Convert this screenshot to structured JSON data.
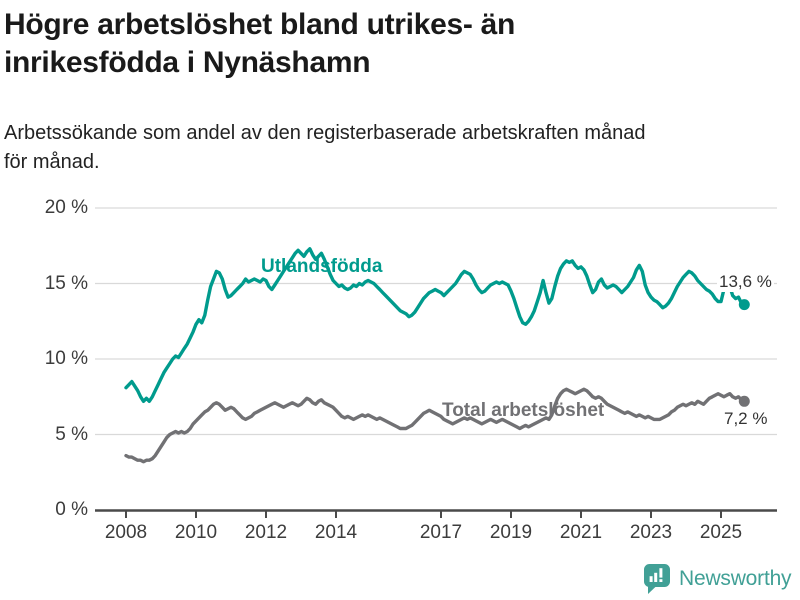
{
  "header": {
    "title": "Högre arbetslöshet bland utrikes- än inrikesfödda i Nynäshamn",
    "title_lines": [
      "Högre arbetslöshet bland utrikes- än",
      "inrikesfödda i Nynäshamn"
    ],
    "subtitle": "Arbetssökande som andel av den registerbaserade arbetskraften månad för månad.",
    "subtitle_lines": [
      "Arbetssökande som andel av den registerbaserade arbetskraften månad",
      "för månad."
    ]
  },
  "footer": {
    "brand": "Newsworthy",
    "logo_icon": "speech-bubble-bar-chart-icon",
    "brand_color": "#41a096"
  },
  "colors": {
    "accent_teal": "#009b8d",
    "neutral_gray": "#717174",
    "gridline": "#d9d9d9",
    "axis": "#4a4a4a",
    "tick_text": "#3c3c3c",
    "annotation_text": "#333333"
  },
  "chart_data": {
    "type": "line",
    "unit": "%",
    "x_start_year": 2008.0,
    "x_step_months": 1,
    "x_end_label_period": "2025",
    "ylim": [
      0,
      20
    ],
    "grid": true,
    "yticks": [
      {
        "value": 0,
        "label": "0 %"
      },
      {
        "value": 5,
        "label": "5 %"
      },
      {
        "value": 10,
        "label": "10 %"
      },
      {
        "value": 15,
        "label": "15 %"
      },
      {
        "value": 20,
        "label": "20 %"
      }
    ],
    "xticks": [
      {
        "year": 2008,
        "label": "2008"
      },
      {
        "year": 2010,
        "label": "2010"
      },
      {
        "year": 2012,
        "label": "2012"
      },
      {
        "year": 2014,
        "label": "2014"
      },
      {
        "year": 2017,
        "label": "2017"
      },
      {
        "year": 2019,
        "label": "2019"
      },
      {
        "year": 2021,
        "label": "2021"
      },
      {
        "year": 2023,
        "label": "2023"
      },
      {
        "year": 2025,
        "label": "2025"
      }
    ],
    "series": [
      {
        "name": "Utlandsfödda",
        "color": "#009b8d",
        "end_value": 13.6,
        "end_label": "13,6 %",
        "values": [
          8.1,
          8.3,
          8.5,
          8.2,
          7.9,
          7.5,
          7.2,
          7.4,
          7.2,
          7.5,
          7.9,
          8.3,
          8.7,
          9.1,
          9.4,
          9.7,
          10.0,
          10.2,
          10.1,
          10.4,
          10.7,
          11.0,
          11.4,
          11.8,
          12.3,
          12.6,
          12.4,
          12.9,
          13.9,
          14.8,
          15.3,
          15.8,
          15.7,
          15.3,
          14.6,
          14.1,
          14.2,
          14.4,
          14.6,
          14.8,
          15.0,
          15.3,
          15.1,
          15.2,
          15.3,
          15.2,
          15.1,
          15.3,
          15.2,
          14.8,
          14.6,
          14.9,
          15.2,
          15.5,
          15.8,
          16.1,
          16.4,
          16.7,
          17.0,
          17.2,
          17.0,
          16.8,
          17.1,
          17.3,
          16.9,
          16.6,
          16.8,
          17.0,
          16.6,
          16.1,
          15.6,
          15.2,
          15.0,
          14.8,
          14.9,
          14.7,
          14.6,
          14.7,
          14.9,
          14.8,
          15.0,
          14.9,
          15.1,
          15.2,
          15.1,
          15.0,
          14.8,
          14.6,
          14.4,
          14.2,
          14.0,
          13.8,
          13.6,
          13.4,
          13.2,
          13.1,
          13.0,
          12.8,
          12.9,
          13.1,
          13.4,
          13.7,
          14.0,
          14.2,
          14.4,
          14.5,
          14.6,
          14.5,
          14.4,
          14.2,
          14.4,
          14.6,
          14.8,
          15.0,
          15.3,
          15.6,
          15.8,
          15.7,
          15.6,
          15.3,
          14.9,
          14.6,
          14.4,
          14.5,
          14.7,
          14.9,
          15.0,
          15.1,
          15.0,
          15.1,
          15.0,
          14.9,
          14.5,
          14.0,
          13.4,
          12.8,
          12.4,
          12.3,
          12.5,
          12.8,
          13.2,
          13.8,
          14.4,
          15.2,
          14.4,
          13.7,
          14.0,
          14.8,
          15.5,
          16.0,
          16.3,
          16.5,
          16.4,
          16.5,
          16.2,
          16.0,
          16.1,
          15.9,
          15.5,
          14.9,
          14.4,
          14.6,
          15.1,
          15.3,
          14.9,
          14.7,
          14.8,
          14.9,
          14.8,
          14.6,
          14.4,
          14.6,
          14.8,
          15.1,
          15.4,
          15.9,
          16.2,
          15.8,
          14.9,
          14.4,
          14.1,
          13.9,
          13.8,
          13.6,
          13.4,
          13.5,
          13.7,
          14.0,
          14.4,
          14.8,
          15.1,
          15.4,
          15.6,
          15.8,
          15.7,
          15.5,
          15.2,
          15.0,
          14.8,
          14.6,
          14.5,
          14.3,
          14.0,
          13.8,
          13.8,
          14.6,
          15.3,
          14.8,
          14.2,
          14.0,
          14.1,
          13.7,
          13.6
        ]
      },
      {
        "name": "Total arbetslöshet",
        "color": "#717174",
        "end_value": 7.2,
        "end_label": "7,2 %",
        "values": [
          3.6,
          3.5,
          3.5,
          3.4,
          3.3,
          3.3,
          3.2,
          3.3,
          3.3,
          3.4,
          3.6,
          3.9,
          4.2,
          4.5,
          4.8,
          5.0,
          5.1,
          5.2,
          5.1,
          5.2,
          5.1,
          5.2,
          5.4,
          5.7,
          5.9,
          6.1,
          6.3,
          6.5,
          6.6,
          6.8,
          7.0,
          7.1,
          7.0,
          6.8,
          6.6,
          6.7,
          6.8,
          6.7,
          6.5,
          6.3,
          6.1,
          6.0,
          6.1,
          6.2,
          6.4,
          6.5,
          6.6,
          6.7,
          6.8,
          6.9,
          7.0,
          7.1,
          7.0,
          6.9,
          6.8,
          6.9,
          7.0,
          7.1,
          7.0,
          6.9,
          7.0,
          7.2,
          7.4,
          7.3,
          7.1,
          7.0,
          7.2,
          7.3,
          7.1,
          7.0,
          6.9,
          6.8,
          6.6,
          6.4,
          6.2,
          6.1,
          6.2,
          6.1,
          6.0,
          6.1,
          6.2,
          6.3,
          6.2,
          6.3,
          6.2,
          6.1,
          6.0,
          6.1,
          6.0,
          5.9,
          5.8,
          5.7,
          5.6,
          5.5,
          5.4,
          5.4,
          5.4,
          5.5,
          5.6,
          5.8,
          6.0,
          6.2,
          6.4,
          6.5,
          6.6,
          6.5,
          6.4,
          6.3,
          6.2,
          6.0,
          5.9,
          5.8,
          5.7,
          5.8,
          5.9,
          6.0,
          6.1,
          6.0,
          6.1,
          6.0,
          5.9,
          5.8,
          5.7,
          5.8,
          5.9,
          6.0,
          5.9,
          5.8,
          5.9,
          6.0,
          5.9,
          5.8,
          5.7,
          5.6,
          5.5,
          5.4,
          5.5,
          5.6,
          5.5,
          5.6,
          5.7,
          5.8,
          5.9,
          6.0,
          6.1,
          6.0,
          6.3,
          6.9,
          7.4,
          7.7,
          7.9,
          8.0,
          7.9,
          7.8,
          7.7,
          7.8,
          7.9,
          8.0,
          7.9,
          7.7,
          7.5,
          7.4,
          7.5,
          7.4,
          7.2,
          7.0,
          6.9,
          6.8,
          6.7,
          6.6,
          6.5,
          6.4,
          6.5,
          6.4,
          6.3,
          6.2,
          6.3,
          6.2,
          6.1,
          6.2,
          6.1,
          6.0,
          6.0,
          6.0,
          6.1,
          6.2,
          6.3,
          6.5,
          6.6,
          6.8,
          6.9,
          7.0,
          6.9,
          7.0,
          7.1,
          7.0,
          7.2,
          7.1,
          7.0,
          7.2,
          7.4,
          7.5,
          7.6,
          7.7,
          7.6,
          7.5,
          7.6,
          7.7,
          7.5,
          7.4,
          7.5,
          7.3,
          7.2
        ]
      }
    ]
  }
}
